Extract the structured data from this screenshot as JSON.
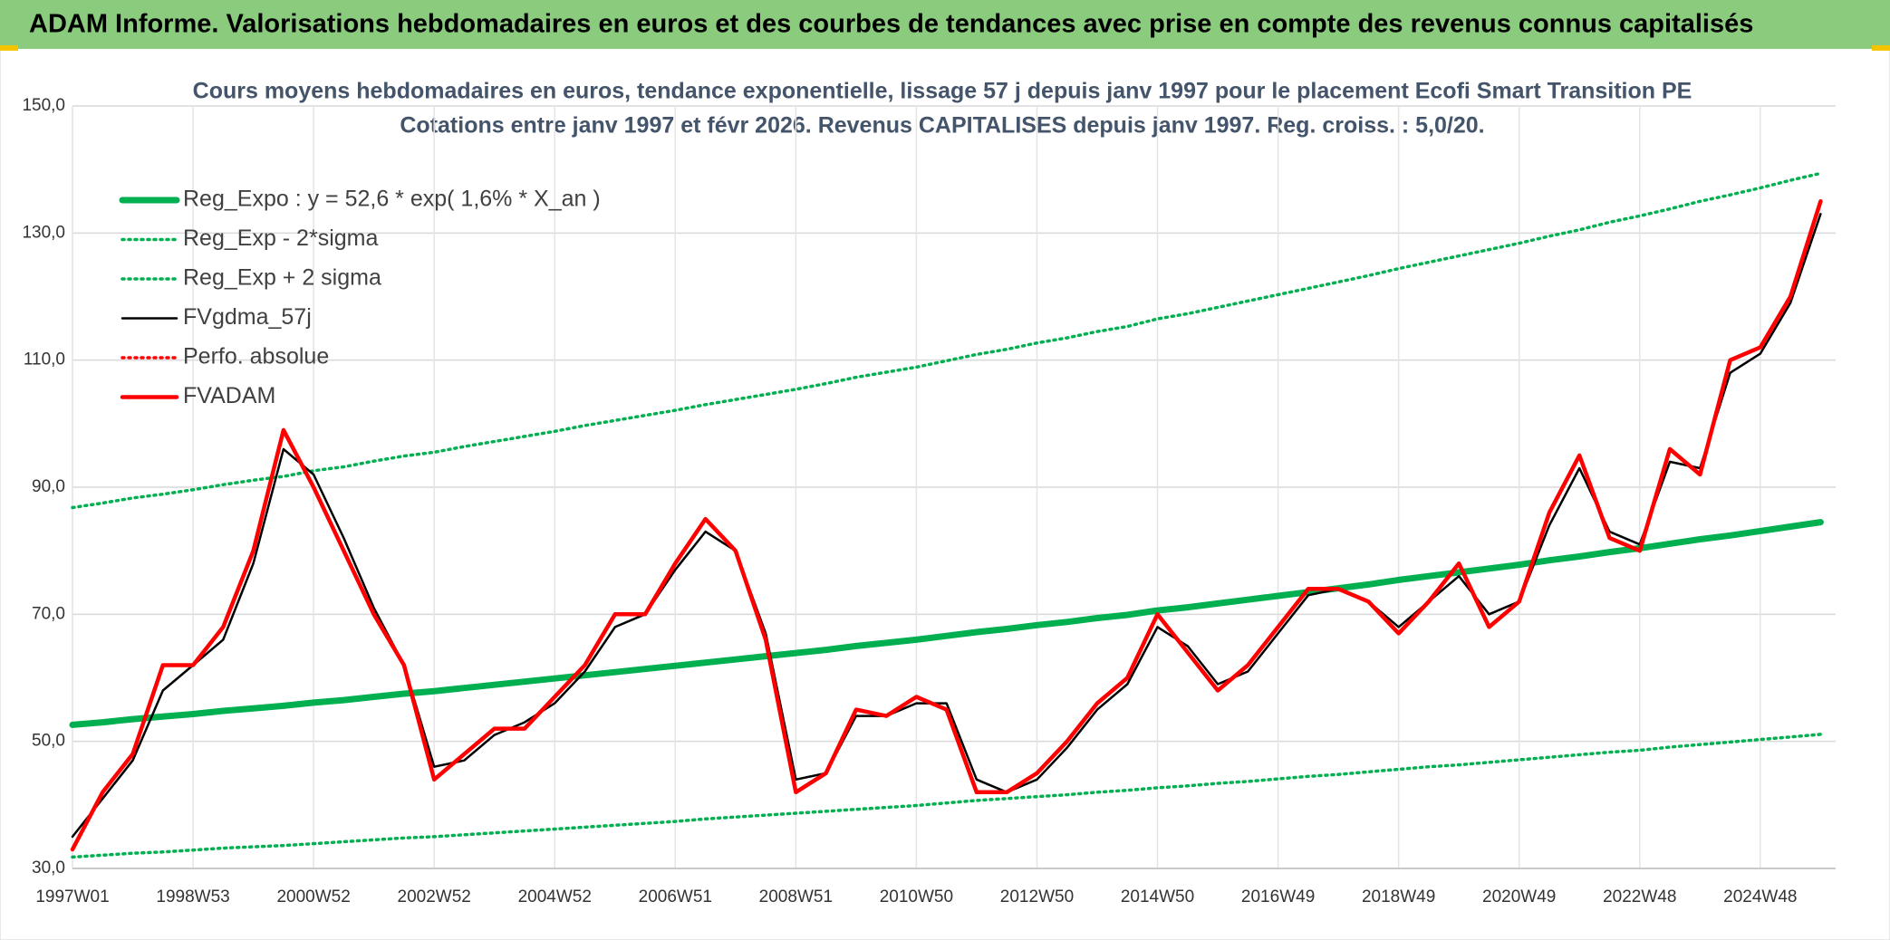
{
  "chart_data": {
    "type": "line",
    "title": "ADAM Informe. Valorisations hebdomadaires en euros et des courbes de tendances avec prise en compte des revenus connus capitalisés",
    "subtitles": [
      "Cours moyens hebdomadaires en euros, tendance exponentielle, lissage 57 j depuis janv 1997 pour le placement Ecofi Smart Transition PE",
      "Cotations entre janv 1997 et févr 2026. Revenus CAPITALISES depuis janv 1997. Reg. croiss. : 5,0/20."
    ],
    "categories": [
      "1997W01",
      null,
      null,
      null,
      "1998W53",
      null,
      null,
      null,
      "2000W52",
      null,
      null,
      null,
      "2002W52",
      null,
      null,
      null,
      "2004W52",
      null,
      null,
      null,
      "2006W51",
      null,
      null,
      null,
      "2008W51",
      null,
      null,
      null,
      "2010W50",
      null,
      null,
      null,
      "2012W50",
      null,
      null,
      null,
      "2014W50",
      null,
      null,
      null,
      "2016W49",
      null,
      null,
      null,
      "2018W49",
      null,
      null,
      null,
      "2020W49",
      null,
      null,
      null,
      "2022W48",
      null,
      null,
      null,
      "2024W48",
      null,
      null
    ],
    "ylim": [
      30,
      150
    ],
    "yticks": [
      {
        "value": 30,
        "label": "30,0"
      },
      {
        "value": 50,
        "label": "50,0"
      },
      {
        "value": 70,
        "label": "70,0"
      },
      {
        "value": 90,
        "label": "90,0"
      },
      {
        "value": 110,
        "label": "110,0"
      },
      {
        "value": 130,
        "label": "130,0"
      },
      {
        "value": 150,
        "label": "150,0"
      }
    ],
    "grid": true,
    "legend": "top-left",
    "series": [
      {
        "name": "Reg_Expo : y = 52,6 * exp( 1,6% *  X_an )",
        "color": "#00b050",
        "style": "thick",
        "values": [
          52.6,
          53.0,
          53.5,
          53.9,
          54.3,
          54.8,
          55.2,
          55.6,
          56.1,
          56.5,
          57.0,
          57.5,
          57.9,
          58.4,
          58.9,
          59.4,
          59.9,
          60.4,
          60.9,
          61.4,
          61.9,
          62.4,
          62.9,
          63.4,
          63.9,
          64.4,
          65.0,
          65.5,
          66.0,
          66.6,
          67.2,
          67.7,
          68.3,
          68.8,
          69.4,
          69.9,
          70.6,
          71.1,
          71.7,
          72.3,
          72.9,
          73.5,
          74.1,
          74.7,
          75.4,
          76.0,
          76.6,
          77.2,
          77.8,
          78.5,
          79.1,
          79.8,
          80.4,
          81.1,
          81.8,
          82.4,
          83.1,
          83.8,
          84.5
        ]
      },
      {
        "name": "Reg_Exp - 2*sigma",
        "color": "#00b050",
        "style": "dotted",
        "values": [
          31.8,
          32.1,
          32.4,
          32.6,
          32.9,
          33.2,
          33.4,
          33.6,
          33.9,
          34.2,
          34.5,
          34.8,
          35.0,
          35.3,
          35.6,
          35.9,
          36.2,
          36.5,
          36.8,
          37.1,
          37.4,
          37.8,
          38.1,
          38.4,
          38.7,
          39.0,
          39.3,
          39.6,
          39.9,
          40.3,
          40.7,
          41.0,
          41.3,
          41.6,
          42.0,
          42.3,
          42.7,
          43.0,
          43.4,
          43.7,
          44.1,
          44.5,
          44.8,
          45.2,
          45.6,
          46.0,
          46.3,
          46.7,
          47.1,
          47.5,
          47.9,
          48.3,
          48.6,
          49.1,
          49.5,
          49.9,
          50.3,
          50.7,
          51.1
        ]
      },
      {
        "name": "Reg_Exp + 2 sigma",
        "color": "#00b050",
        "style": "dotted",
        "values": [
          86.8,
          87.5,
          88.3,
          88.9,
          89.6,
          90.4,
          91.1,
          91.7,
          92.6,
          93.2,
          94.1,
          94.9,
          95.5,
          96.4,
          97.2,
          98.0,
          98.8,
          99.7,
          100.5,
          101.3,
          102.1,
          103.0,
          103.8,
          104.6,
          105.4,
          106.3,
          107.3,
          108.1,
          108.9,
          109.9,
          110.9,
          111.7,
          112.7,
          113.5,
          114.5,
          115.3,
          116.5,
          117.3,
          118.3,
          119.3,
          120.3,
          121.3,
          122.3,
          123.3,
          124.4,
          125.4,
          126.4,
          127.4,
          128.4,
          129.5,
          130.5,
          131.7,
          132.7,
          133.8,
          135.0,
          136.0,
          137.1,
          138.3,
          139.4
        ]
      },
      {
        "name": "FVgdma_57j",
        "color": "#000000",
        "style": "solid",
        "values": [
          35,
          41,
          47,
          58,
          62,
          66,
          78,
          96,
          92,
          82,
          71,
          62,
          46,
          47,
          51,
          53,
          56,
          61,
          68,
          70,
          77,
          83,
          80,
          67,
          44,
          45,
          54,
          54,
          56,
          56,
          44,
          42,
          44,
          49,
          55,
          59,
          68,
          65,
          59,
          61,
          67,
          73,
          74,
          72,
          68,
          72,
          76,
          70,
          72,
          84,
          93,
          83,
          81,
          94,
          93,
          108,
          111,
          119,
          133
        ]
      },
      {
        "name": "Perfo. absolue",
        "color": "#ff0000",
        "style": "dotted",
        "values": [
          null,
          null,
          null,
          null,
          null,
          null,
          null,
          null,
          null,
          null,
          null,
          null,
          null,
          null,
          null,
          null,
          null,
          null,
          null,
          null,
          null,
          null,
          null,
          null,
          null,
          null,
          null,
          null,
          null,
          null,
          null,
          null,
          null,
          null,
          null,
          null,
          null,
          null,
          null,
          null,
          null,
          null,
          null,
          null,
          null,
          null,
          null,
          null,
          null,
          null,
          null,
          null,
          null,
          null,
          null,
          null,
          null,
          null,
          null
        ]
      },
      {
        "name": "FVADAM",
        "color": "#ff0000",
        "style": "red",
        "values": [
          33,
          42,
          48,
          62,
          62,
          68,
          80,
          99,
          90,
          80,
          70,
          62,
          44,
          48,
          52,
          52,
          57,
          62,
          70,
          70,
          78,
          85,
          80,
          66,
          42,
          45,
          55,
          54,
          57,
          55,
          42,
          42,
          45,
          50,
          56,
          60,
          70,
          64,
          58,
          62,
          68,
          74,
          74,
          72,
          67,
          72,
          78,
          68,
          72,
          86,
          95,
          82,
          80,
          96,
          92,
          110,
          112,
          120,
          135
        ]
      }
    ]
  }
}
